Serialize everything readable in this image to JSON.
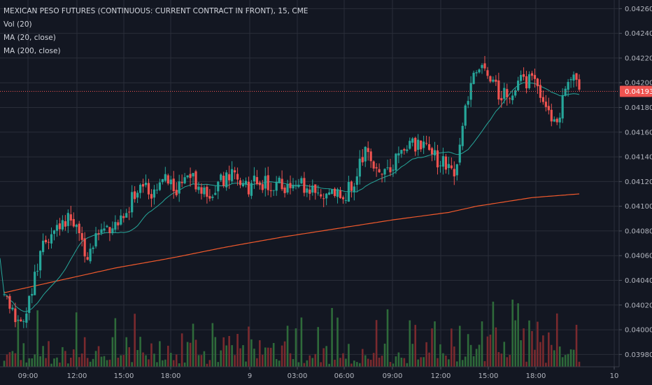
{
  "legend": {
    "title": "MEXICAN PESO FUTURES (CONTINUOUS: CURRENT CONTRACT IN FRONT), 15, CME",
    "vol": "Vol (20)",
    "ma20": "MA (20, close)",
    "ma200": "MA (200, close)"
  },
  "colors": {
    "background": "#131722",
    "grid": "#2a2e39",
    "up": "#26a69a",
    "down": "#ef5350",
    "volume_up": "#2e6a3a",
    "volume_down": "#7a2a2e",
    "ma20": "#26a69a",
    "ma200": "#f0592c",
    "last_price": "#ef5350"
  },
  "chart_data": {
    "type": "candlestick",
    "y_axis": {
      "ticks": [
        "0.04260",
        "0.04240",
        "0.04220",
        "0.04200",
        "0.04180",
        "0.04160",
        "0.04140",
        "0.04120",
        "0.04100",
        "0.04080",
        "0.04060",
        "0.04040",
        "0.04020",
        "0.04000",
        "0.03980"
      ],
      "range": [
        0.0397,
        0.04267
      ]
    },
    "x_axis": {
      "ticks": [
        "09:00",
        "12:00",
        "15:00",
        "18:00",
        "9",
        "03:00",
        "06:00",
        "09:00",
        "12:00",
        "15:00",
        "18:00",
        "10"
      ]
    },
    "last_price": "0.04193",
    "anchors": [
      [
        0,
        0.0403
      ],
      [
        4,
        0.04005
      ],
      [
        8,
        0.0401
      ],
      [
        10,
        0.04035
      ],
      [
        14,
        0.0407
      ],
      [
        18,
        0.0408
      ],
      [
        22,
        0.0409
      ],
      [
        26,
        0.04085
      ],
      [
        30,
        0.0406
      ],
      [
        34,
        0.04075
      ],
      [
        38,
        0.04085
      ],
      [
        42,
        0.0409
      ],
      [
        46,
        0.04105
      ],
      [
        50,
        0.0412
      ],
      [
        54,
        0.0411
      ],
      [
        58,
        0.0412
      ],
      [
        62,
        0.04115
      ],
      [
        66,
        0.04125
      ],
      [
        70,
        0.04115
      ],
      [
        74,
        0.04105
      ],
      [
        78,
        0.0412
      ],
      [
        82,
        0.04125
      ],
      [
        86,
        0.04115
      ],
      [
        90,
        0.04118
      ],
      [
        94,
        0.0412
      ],
      [
        98,
        0.04118
      ],
      [
        102,
        0.04115
      ],
      [
        106,
        0.04118
      ],
      [
        110,
        0.04115
      ],
      [
        114,
        0.04113
      ],
      [
        118,
        0.0411
      ],
      [
        122,
        0.04108
      ],
      [
        126,
        0.0412
      ],
      [
        130,
        0.04145
      ],
      [
        134,
        0.04135
      ],
      [
        138,
        0.04125
      ],
      [
        142,
        0.04145
      ],
      [
        146,
        0.0415
      ],
      [
        150,
        0.04148
      ],
      [
        154,
        0.0414
      ],
      [
        158,
        0.04135
      ],
      [
        162,
        0.04125
      ],
      [
        164,
        0.0415
      ],
      [
        166,
        0.0418
      ],
      [
        168,
        0.042
      ],
      [
        170,
        0.04205
      ],
      [
        172,
        0.0422
      ],
      [
        174,
        0.0421
      ],
      [
        176,
        0.042
      ],
      [
        178,
        0.0419
      ],
      [
        180,
        0.04195
      ],
      [
        182,
        0.0419
      ],
      [
        184,
        0.042
      ],
      [
        186,
        0.04205
      ],
      [
        188,
        0.04195
      ],
      [
        190,
        0.04205
      ],
      [
        192,
        0.042
      ],
      [
        194,
        0.04185
      ],
      [
        196,
        0.04175
      ],
      [
        198,
        0.04168
      ],
      [
        200,
        0.04178
      ],
      [
        202,
        0.04195
      ],
      [
        204,
        0.042
      ],
      [
        206,
        0.04205
      ],
      [
        207,
        0.04193
      ]
    ],
    "ma200": [
      [
        0,
        0.0403
      ],
      [
        20,
        0.0404
      ],
      [
        40,
        0.0405
      ],
      [
        60,
        0.04058
      ],
      [
        80,
        0.04067
      ],
      [
        100,
        0.04075
      ],
      [
        120,
        0.04082
      ],
      [
        140,
        0.04089
      ],
      [
        160,
        0.04095
      ],
      [
        170,
        0.041
      ],
      [
        190,
        0.04107
      ],
      [
        207,
        0.0411
      ]
    ],
    "ma_period": 20,
    "candle_count": 208
  }
}
